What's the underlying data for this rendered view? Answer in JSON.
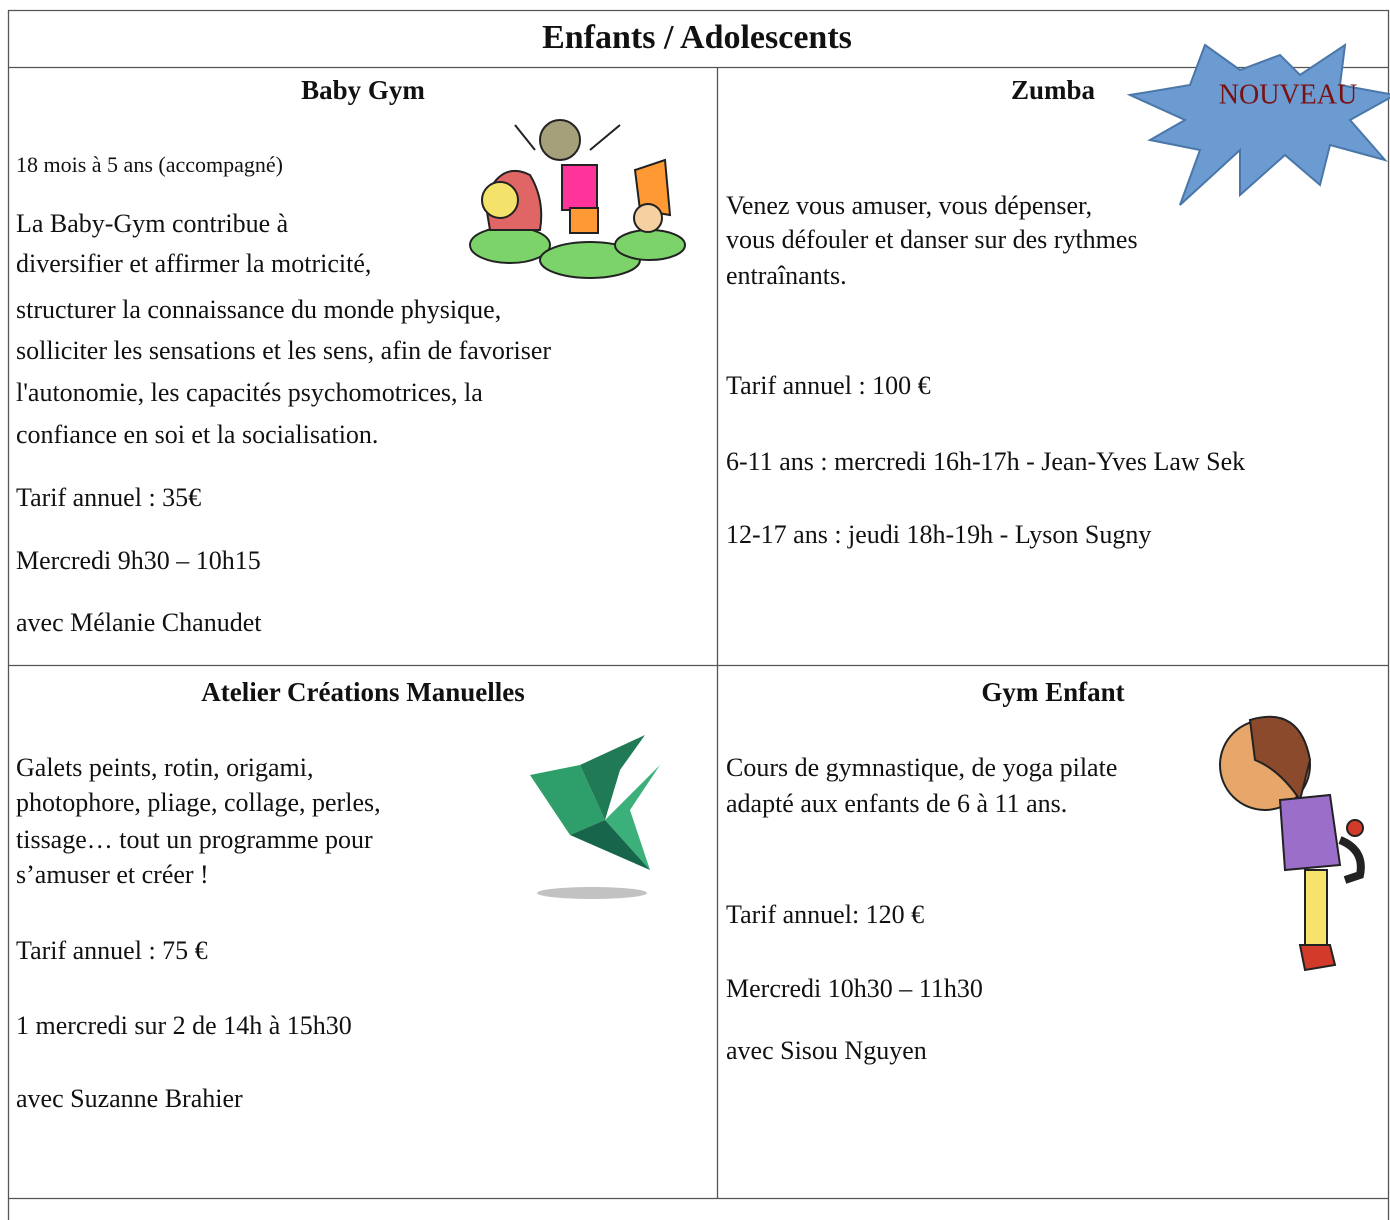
{
  "header": {
    "title": "Enfants / Adolescents"
  },
  "badge": "NOUVEAU",
  "cells": [
    {
      "title": "Baby Gym",
      "paragraphs": [
        [
          "18 mois à 5 ans (accompagné)"
        ],
        [
          "La Baby-Gym contribue à",
          "diversifier et affirmer la motricité,",
          "structurer la connaissance du monde physique,",
          "solliciter les sensations et les sens, afin de favoriser",
          "l'autonomie, les capacités psychomotrices, la",
          "confiance en soi et la socialisation."
        ],
        [
          "Tarif annuel : 35€"
        ],
        [
          "Mercredi 9h30 – 10h15"
        ],
        [
          "avec Mélanie Chanudet"
        ]
      ]
    },
    {
      "title": "Zumba",
      "paragraphs": [
        [
          "Venez vous amuser, vous dépenser,",
          "vous défouler et danser sur des rythmes",
          "entraînants."
        ],
        [
          "Tarif annuel : 100 €"
        ],
        [
          "6-11 ans :  mercredi 16h-17h - Jean-Yves Law Sek"
        ],
        [
          "12-17 ans : jeudi 18h-19h - Lyson Sugny"
        ]
      ]
    },
    {
      "title": "Atelier Créations Manuelles",
      "paragraphs": [
        [
          "Galets peints, rotin, origami,",
          "photophore, pliage, collage, perles,",
          "tissage… tout un programme pour",
          "s’amuser et créer !"
        ],
        [
          "Tarif annuel : 75 €"
        ],
        [
          "1 mercredi sur 2 de 14h à 15h30"
        ],
        [
          "avec Suzanne Brahier"
        ]
      ]
    },
    {
      "title": "Gym Enfant",
      "paragraphs": [
        [
          "Cours de gymnastique, de yoga pilate",
          "adapté aux enfants de 6 à 11 ans."
        ],
        [
          "Tarif annuel: 120 €"
        ],
        [
          "Mercredi 10h30 – 11h30"
        ],
        [
          "avec Sisou Nguyen"
        ]
      ]
    }
  ]
}
